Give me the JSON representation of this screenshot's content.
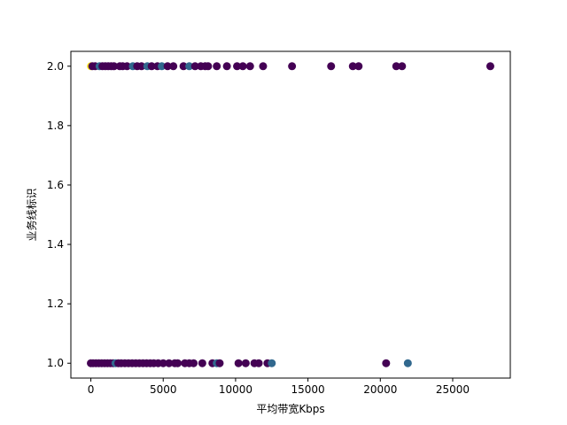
{
  "chart_data": {
    "type": "scatter",
    "title": "",
    "xlabel": "平均带宽Kbps",
    "ylabel": "业务线标识",
    "xlim": [
      -1380,
      28980
    ],
    "ylim": [
      0.95,
      2.05
    ],
    "xticks": [
      0,
      5000,
      10000,
      15000,
      20000,
      25000
    ],
    "xtick_labels": [
      "0",
      "5000",
      "10000",
      "15000",
      "20000",
      "25000"
    ],
    "yticks": [
      1.0,
      1.2,
      1.4,
      1.6,
      1.8,
      2.0
    ],
    "ytick_labels": [
      "1.0",
      "1.2",
      "1.4",
      "1.6",
      "1.8",
      "2.0"
    ],
    "grid": false,
    "legend": "none",
    "colormap": "viridis",
    "colors": {
      "dark_purple": "#440154",
      "teal_blue": "#31688e",
      "yellow": "#fde725"
    },
    "points": [
      {
        "x": 0,
        "y": 2.0,
        "c": "yellow"
      },
      {
        "x": 100,
        "y": 2.0,
        "c": "dark_purple"
      },
      {
        "x": 300,
        "y": 2.0,
        "c": "dark_purple"
      },
      {
        "x": 600,
        "y": 2.0,
        "c": "teal_blue"
      },
      {
        "x": 800,
        "y": 2.0,
        "c": "dark_purple"
      },
      {
        "x": 1000,
        "y": 2.0,
        "c": "dark_purple"
      },
      {
        "x": 1200,
        "y": 2.0,
        "c": "dark_purple"
      },
      {
        "x": 1400,
        "y": 2.0,
        "c": "dark_purple"
      },
      {
        "x": 1600,
        "y": 2.0,
        "c": "dark_purple"
      },
      {
        "x": 2000,
        "y": 2.0,
        "c": "dark_purple"
      },
      {
        "x": 2200,
        "y": 2.0,
        "c": "dark_purple"
      },
      {
        "x": 2500,
        "y": 2.0,
        "c": "dark_purple"
      },
      {
        "x": 2900,
        "y": 2.0,
        "c": "teal_blue"
      },
      {
        "x": 3200,
        "y": 2.0,
        "c": "dark_purple"
      },
      {
        "x": 3500,
        "y": 2.0,
        "c": "dark_purple"
      },
      {
        "x": 3900,
        "y": 2.0,
        "c": "teal_blue"
      },
      {
        "x": 4200,
        "y": 2.0,
        "c": "dark_purple"
      },
      {
        "x": 4600,
        "y": 2.0,
        "c": "dark_purple"
      },
      {
        "x": 4900,
        "y": 2.0,
        "c": "teal_blue"
      },
      {
        "x": 5300,
        "y": 2.0,
        "c": "dark_purple"
      },
      {
        "x": 5700,
        "y": 2.0,
        "c": "dark_purple"
      },
      {
        "x": 6400,
        "y": 2.0,
        "c": "dark_purple"
      },
      {
        "x": 6800,
        "y": 2.0,
        "c": "teal_blue"
      },
      {
        "x": 7200,
        "y": 2.0,
        "c": "dark_purple"
      },
      {
        "x": 7600,
        "y": 2.0,
        "c": "dark_purple"
      },
      {
        "x": 7900,
        "y": 2.0,
        "c": "dark_purple"
      },
      {
        "x": 8100,
        "y": 2.0,
        "c": "dark_purple"
      },
      {
        "x": 8700,
        "y": 2.0,
        "c": "dark_purple"
      },
      {
        "x": 9400,
        "y": 2.0,
        "c": "dark_purple"
      },
      {
        "x": 10100,
        "y": 2.0,
        "c": "dark_purple"
      },
      {
        "x": 10500,
        "y": 2.0,
        "c": "dark_purple"
      },
      {
        "x": 11000,
        "y": 2.0,
        "c": "dark_purple"
      },
      {
        "x": 11900,
        "y": 2.0,
        "c": "dark_purple"
      },
      {
        "x": 13900,
        "y": 2.0,
        "c": "dark_purple"
      },
      {
        "x": 16600,
        "y": 2.0,
        "c": "dark_purple"
      },
      {
        "x": 18100,
        "y": 2.0,
        "c": "dark_purple"
      },
      {
        "x": 18500,
        "y": 2.0,
        "c": "dark_purple"
      },
      {
        "x": 21100,
        "y": 2.0,
        "c": "dark_purple"
      },
      {
        "x": 21500,
        "y": 2.0,
        "c": "dark_purple"
      },
      {
        "x": 27600,
        "y": 2.0,
        "c": "dark_purple"
      },
      {
        "x": 0,
        "y": 1.0,
        "c": "dark_purple"
      },
      {
        "x": 150,
        "y": 1.0,
        "c": "dark_purple"
      },
      {
        "x": 350,
        "y": 1.0,
        "c": "dark_purple"
      },
      {
        "x": 550,
        "y": 1.0,
        "c": "dark_purple"
      },
      {
        "x": 750,
        "y": 1.0,
        "c": "dark_purple"
      },
      {
        "x": 950,
        "y": 1.0,
        "c": "dark_purple"
      },
      {
        "x": 1150,
        "y": 1.0,
        "c": "dark_purple"
      },
      {
        "x": 1350,
        "y": 1.0,
        "c": "dark_purple"
      },
      {
        "x": 1550,
        "y": 1.0,
        "c": "dark_purple"
      },
      {
        "x": 1700,
        "y": 1.0,
        "c": "teal_blue"
      },
      {
        "x": 1900,
        "y": 1.0,
        "c": "dark_purple"
      },
      {
        "x": 2100,
        "y": 1.0,
        "c": "dark_purple"
      },
      {
        "x": 2350,
        "y": 1.0,
        "c": "dark_purple"
      },
      {
        "x": 2600,
        "y": 1.0,
        "c": "dark_purple"
      },
      {
        "x": 2850,
        "y": 1.0,
        "c": "dark_purple"
      },
      {
        "x": 3100,
        "y": 1.0,
        "c": "dark_purple"
      },
      {
        "x": 3350,
        "y": 1.0,
        "c": "dark_purple"
      },
      {
        "x": 3600,
        "y": 1.0,
        "c": "dark_purple"
      },
      {
        "x": 3850,
        "y": 1.0,
        "c": "dark_purple"
      },
      {
        "x": 4100,
        "y": 1.0,
        "c": "dark_purple"
      },
      {
        "x": 4350,
        "y": 1.0,
        "c": "dark_purple"
      },
      {
        "x": 4650,
        "y": 1.0,
        "c": "dark_purple"
      },
      {
        "x": 5000,
        "y": 1.0,
        "c": "dark_purple"
      },
      {
        "x": 5400,
        "y": 1.0,
        "c": "dark_purple"
      },
      {
        "x": 5800,
        "y": 1.0,
        "c": "dark_purple"
      },
      {
        "x": 6000,
        "y": 1.0,
        "c": "dark_purple"
      },
      {
        "x": 6500,
        "y": 1.0,
        "c": "dark_purple"
      },
      {
        "x": 6800,
        "y": 1.0,
        "c": "dark_purple"
      },
      {
        "x": 7100,
        "y": 1.0,
        "c": "dark_purple"
      },
      {
        "x": 7700,
        "y": 1.0,
        "c": "dark_purple"
      },
      {
        "x": 8400,
        "y": 1.0,
        "c": "dark_purple"
      },
      {
        "x": 8700,
        "y": 1.0,
        "c": "teal_blue"
      },
      {
        "x": 8900,
        "y": 1.0,
        "c": "dark_purple"
      },
      {
        "x": 10200,
        "y": 1.0,
        "c": "dark_purple"
      },
      {
        "x": 10700,
        "y": 1.0,
        "c": "dark_purple"
      },
      {
        "x": 11300,
        "y": 1.0,
        "c": "dark_purple"
      },
      {
        "x": 11600,
        "y": 1.0,
        "c": "dark_purple"
      },
      {
        "x": 12200,
        "y": 1.0,
        "c": "dark_purple"
      },
      {
        "x": 12500,
        "y": 1.0,
        "c": "teal_blue"
      },
      {
        "x": 20400,
        "y": 1.0,
        "c": "dark_purple"
      },
      {
        "x": 21900,
        "y": 1.0,
        "c": "teal_blue"
      }
    ]
  }
}
